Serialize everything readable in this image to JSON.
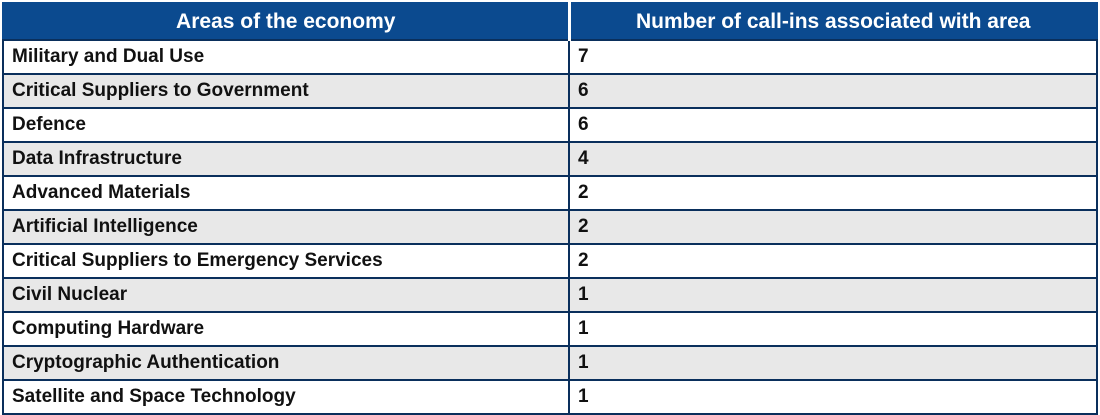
{
  "table": {
    "headers": {
      "area": "Areas of the economy",
      "count": "Number of call-ins associated with area"
    },
    "rows": [
      {
        "area": "Military and Dual Use",
        "count": "7"
      },
      {
        "area": "Critical Suppliers to Government",
        "count": "6"
      },
      {
        "area": "Defence",
        "count": "6"
      },
      {
        "area": "Data Infrastructure",
        "count": "4"
      },
      {
        "area": "Advanced Materials",
        "count": "2"
      },
      {
        "area": "Artificial Intelligence",
        "count": "2"
      },
      {
        "area": "Critical Suppliers to Emergency Services",
        "count": "2"
      },
      {
        "area": "Civil Nuclear",
        "count": "1"
      },
      {
        "area": "Computing Hardware",
        "count": "1"
      },
      {
        "area": "Cryptographic Authentication",
        "count": "1"
      },
      {
        "area": "Satellite and Space Technology",
        "count": "1"
      }
    ]
  },
  "colors": {
    "header_bg": "#0b4a8f",
    "border": "#0a2f5c",
    "stripe": "#e8e8e8"
  }
}
